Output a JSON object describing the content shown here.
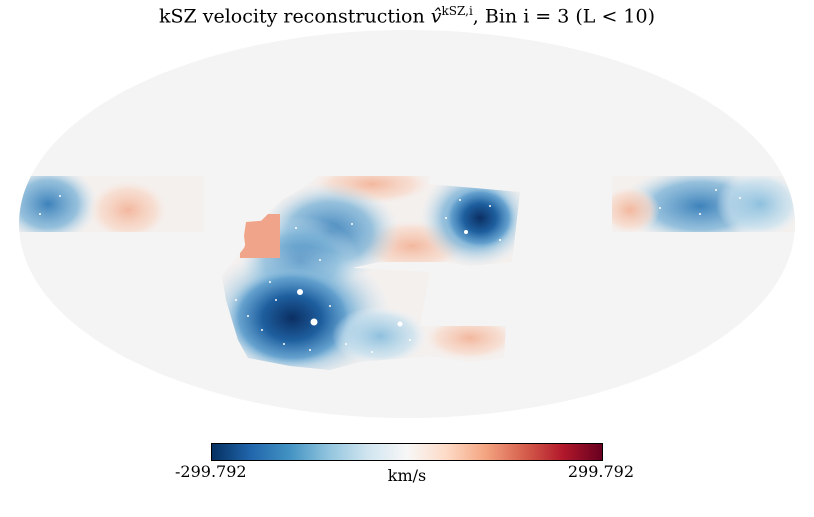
{
  "title": {
    "prefix": "kSZ velocity reconstruction ",
    "symbol": "v̂",
    "superscript": "kSZ,i",
    "suffix": ", Bin i = 3 (L < 10)"
  },
  "projection": "mollweide",
  "colormap": {
    "name": "RdBu_r",
    "min_label": "-299.792",
    "max_label": "299.792",
    "unit_label": "km/s",
    "stops": [
      "#053061",
      "#2166ac",
      "#4393c3",
      "#92c5de",
      "#d1e5f0",
      "#f7f7f7",
      "#fddbc7",
      "#f4a582",
      "#d6604d",
      "#b2182b",
      "#67001f"
    ]
  },
  "colors": {
    "masked_background": "#f4f4f4",
    "map_edge": "#e8e8e8"
  }
}
